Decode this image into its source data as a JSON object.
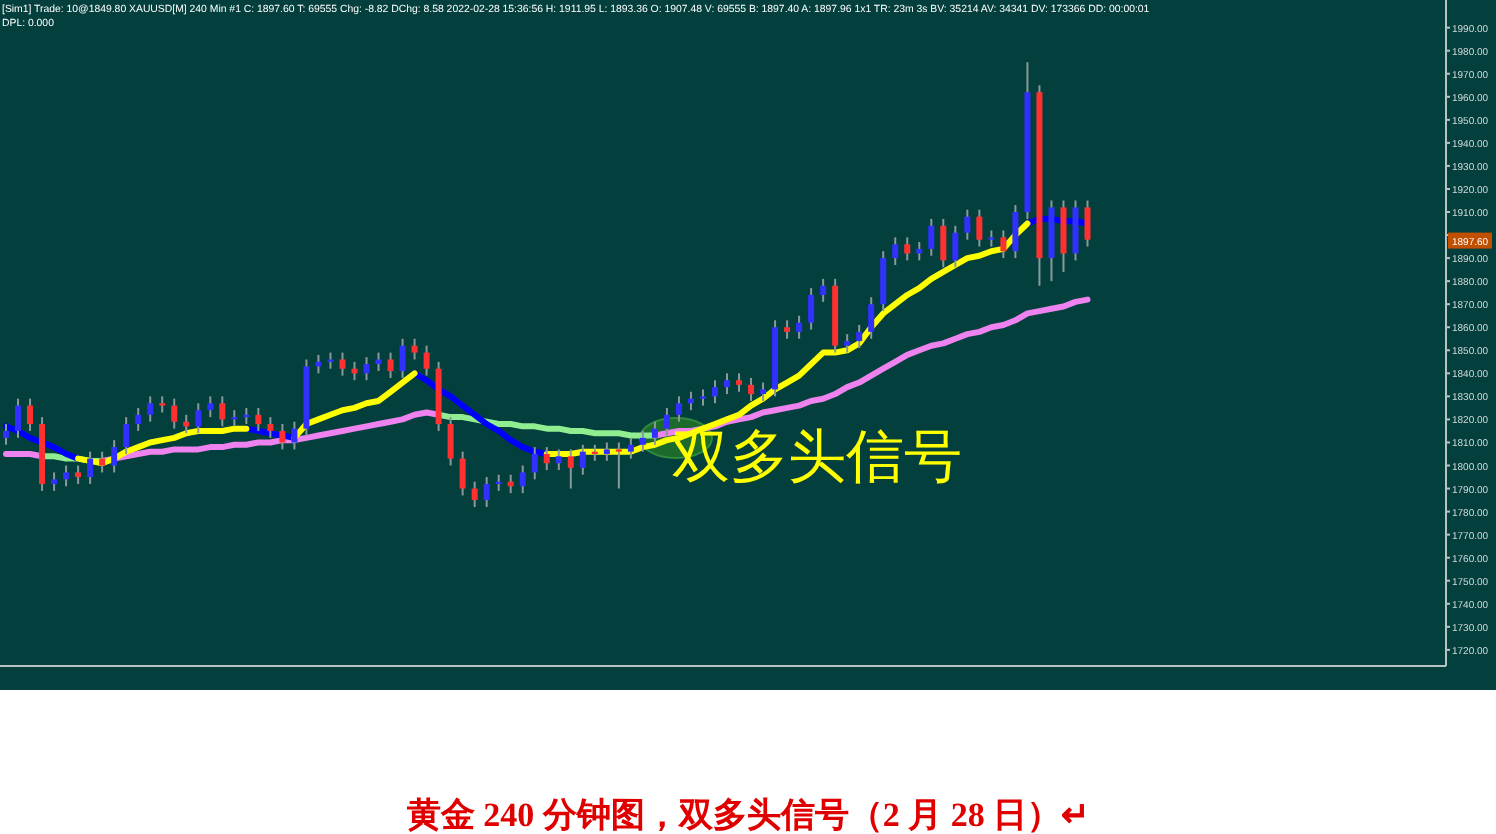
{
  "chart_data": {
    "type": "candlestick",
    "categories": [
      null,
      null,
      null,
      null,
      null,
      null,
      null,
      null,
      null,
      null,
      null,
      null,
      null,
      null,
      null,
      null,
      null,
      null,
      null,
      null,
      null,
      null,
      null,
      null,
      null,
      null,
      null,
      null,
      null,
      null,
      null,
      null,
      null,
      null,
      null,
      null,
      null,
      null,
      null,
      null,
      null,
      null,
      null,
      null,
      null,
      null,
      null,
      null,
      null,
      null,
      null,
      null,
      null,
      null,
      null,
      null,
      null,
      null,
      null,
      null,
      null,
      null,
      null,
      null,
      null,
      null,
      null,
      null,
      null,
      null,
      null,
      null,
      null,
      null,
      null,
      null,
      null,
      null,
      null,
      null,
      null,
      null,
      null,
      null,
      null,
      null,
      null,
      null,
      null,
      null,
      null,
      null,
      null,
      null,
      null,
      null,
      null,
      null,
      null,
      null,
      null,
      null,
      null,
      null,
      null,
      null,
      null,
      null,
      null,
      null,
      null,
      null,
      null,
      null,
      null,
      null,
      null,
      null,
      null,
      null
    ],
    "ohlc": [
      [
        1812,
        1818,
        1809,
        1815
      ],
      [
        1815,
        1829,
        1812,
        1826
      ],
      [
        1826,
        1829,
        1815,
        1818
      ],
      [
        1818,
        1821,
        1789,
        1792
      ],
      [
        1792,
        1797,
        1789,
        1794
      ],
      [
        1794,
        1800,
        1791,
        1797
      ],
      [
        1797,
        1800,
        1792,
        1795
      ],
      [
        1795,
        1806,
        1792,
        1803
      ],
      [
        1803,
        1806,
        1797,
        1800
      ],
      [
        1800,
        1811,
        1797,
        1808
      ],
      [
        1808,
        1821,
        1805,
        1818
      ],
      [
        1818,
        1825,
        1815,
        1822
      ],
      [
        1822,
        1830,
        1819,
        1827
      ],
      [
        1827,
        1830,
        1823,
        1826
      ],
      [
        1826,
        1829,
        1816,
        1819
      ],
      [
        1819,
        1822,
        1814,
        1817
      ],
      [
        1817,
        1827,
        1814,
        1824
      ],
      [
        1824,
        1830,
        1821,
        1827
      ],
      [
        1827,
        1830,
        1817,
        1820
      ],
      [
        1820,
        1824,
        1817,
        1821
      ],
      [
        1821,
        1825,
        1818,
        1822
      ],
      [
        1822,
        1825,
        1815,
        1818
      ],
      [
        1818,
        1821,
        1812,
        1815
      ],
      [
        1815,
        1818,
        1807,
        1810
      ],
      [
        1810,
        1819,
        1807,
        1816
      ],
      [
        1816,
        1846,
        1813,
        1843
      ],
      [
        1843,
        1848,
        1840,
        1845
      ],
      [
        1845,
        1849,
        1842,
        1846
      ],
      [
        1846,
        1849,
        1839,
        1842
      ],
      [
        1842,
        1845,
        1837,
        1840
      ],
      [
        1840,
        1847,
        1837,
        1844
      ],
      [
        1844,
        1849,
        1841,
        1846
      ],
      [
        1846,
        1849,
        1838,
        1841
      ],
      [
        1841,
        1855,
        1838,
        1852
      ],
      [
        1852,
        1855,
        1846,
        1849
      ],
      [
        1849,
        1852,
        1839,
        1842
      ],
      [
        1842,
        1845,
        1815,
        1818
      ],
      [
        1818,
        1821,
        1800,
        1803
      ],
      [
        1803,
        1806,
        1787,
        1790
      ],
      [
        1790,
        1793,
        1782,
        1785
      ],
      [
        1785,
        1795,
        1782,
        1792
      ],
      [
        1792,
        1796,
        1789,
        1793
      ],
      [
        1793,
        1796,
        1788,
        1791
      ],
      [
        1791,
        1800,
        1788,
        1797
      ],
      [
        1797,
        1808,
        1794,
        1805
      ],
      [
        1805,
        1808,
        1798,
        1801
      ],
      [
        1801,
        1807,
        1798,
        1804
      ],
      [
        1804,
        1807,
        1790,
        1799
      ],
      [
        1799,
        1809,
        1796,
        1806
      ],
      [
        1806,
        1809,
        1802,
        1805
      ],
      [
        1805,
        1810,
        1802,
        1807
      ],
      [
        1807,
        1810,
        1790,
        1806
      ],
      [
        1806,
        1812,
        1803,
        1809
      ],
      [
        1809,
        1815,
        1806,
        1812
      ],
      [
        1812,
        1819,
        1809,
        1816
      ],
      [
        1816,
        1825,
        1813,
        1822
      ],
      [
        1822,
        1830,
        1819,
        1827
      ],
      [
        1827,
        1832,
        1824,
        1829
      ],
      [
        1829,
        1833,
        1826,
        1830
      ],
      [
        1830,
        1837,
        1827,
        1834
      ],
      [
        1834,
        1840,
        1831,
        1837
      ],
      [
        1837,
        1840,
        1832,
        1835
      ],
      [
        1835,
        1838,
        1828,
        1831
      ],
      [
        1831,
        1836,
        1828,
        1833
      ],
      [
        1833,
        1863,
        1830,
        1860
      ],
      [
        1860,
        1863,
        1855,
        1858
      ],
      [
        1858,
        1865,
        1855,
        1862
      ],
      [
        1862,
        1877,
        1859,
        1874
      ],
      [
        1874,
        1881,
        1871,
        1878
      ],
      [
        1878,
        1881,
        1849,
        1852
      ],
      [
        1852,
        1857,
        1849,
        1854
      ],
      [
        1854,
        1861,
        1851,
        1858
      ],
      [
        1858,
        1873,
        1855,
        1870
      ],
      [
        1870,
        1893,
        1867,
        1890
      ],
      [
        1890,
        1899,
        1887,
        1896
      ],
      [
        1896,
        1899,
        1889,
        1892
      ],
      [
        1892,
        1897,
        1889,
        1894
      ],
      [
        1894,
        1907,
        1891,
        1904
      ],
      [
        1904,
        1907,
        1886,
        1889
      ],
      [
        1889,
        1904,
        1886,
        1901
      ],
      [
        1901,
        1911,
        1898,
        1908
      ],
      [
        1908,
        1911,
        1895,
        1898
      ],
      [
        1898,
        1902,
        1895,
        1899
      ],
      [
        1899,
        1902,
        1890,
        1893
      ],
      [
        1893,
        1913,
        1890,
        1910
      ],
      [
        1910,
        1975,
        1907,
        1962
      ],
      [
        1962,
        1965,
        1878,
        1890
      ],
      [
        1890,
        1915,
        1880,
        1912
      ],
      [
        1912,
        1915,
        1884,
        1892
      ],
      [
        1892,
        1915,
        1889,
        1912
      ],
      [
        1912,
        1915,
        1895,
        1898
      ],
      null,
      null,
      null,
      null,
      null,
      null,
      null,
      null,
      null,
      null,
      null,
      null,
      null,
      null,
      null,
      null,
      null,
      null,
      null,
      null,
      null,
      null,
      null,
      null,
      null,
      null,
      null,
      null,
      null
    ],
    "colors": [
      "#3030ff",
      "#3030ff",
      "#ff3030",
      "#ff3030",
      "#3030ff",
      "#3030ff",
      "#ff3030",
      "#3030ff",
      "#ff3030",
      "#3030ff",
      "#3030ff",
      "#3030ff",
      "#3030ff",
      "#ff3030",
      "#ff3030",
      "#ff3030",
      "#3030ff",
      "#3030ff",
      "#ff3030",
      "#3030ff",
      "#3030ff",
      "#ff3030",
      "#ff3030",
      "#ff3030",
      "#3030ff",
      "#3030ff",
      "#3030ff",
      "#3030ff",
      "#ff3030",
      "#ff3030",
      "#3030ff",
      "#3030ff",
      "#ff3030",
      "#3030ff",
      "#ff3030",
      "#ff3030",
      "#ff3030",
      "#ff3030",
      "#ff3030",
      "#ff3030",
      "#3030ff",
      "#3030ff",
      "#ff3030",
      "#3030ff",
      "#3030ff",
      "#ff3030",
      "#3030ff",
      "#ff3030",
      "#3030ff",
      "#ff3030",
      "#3030ff",
      "#ff3030",
      "#3030ff",
      "#3030ff",
      "#3030ff",
      "#3030ff",
      "#3030ff",
      "#3030ff",
      "#3030ff",
      "#3030ff",
      "#3030ff",
      "#ff3030",
      "#ff3030",
      "#3030ff",
      "#3030ff",
      "#ff3030",
      "#3030ff",
      "#3030ff",
      "#3030ff",
      "#ff3030",
      "#3030ff",
      "#3030ff",
      "#3030ff",
      "#3030ff",
      "#3030ff",
      "#ff3030",
      "#3030ff",
      "#3030ff",
      "#ff3030",
      "#3030ff",
      "#3030ff",
      "#ff3030",
      "#3030ff",
      "#ff3030",
      "#3030ff",
      "#3030ff",
      "#ff3030",
      "#3030ff",
      "#ff3030",
      "#3030ff",
      "#ff3030",
      null,
      null,
      null,
      null,
      null,
      null,
      null,
      null,
      null,
      null,
      null,
      null,
      null,
      null,
      null,
      null,
      null,
      null,
      null,
      null,
      null,
      null,
      null,
      null,
      null,
      null,
      null,
      null,
      null
    ],
    "series": [
      {
        "type": "line",
        "color": "#ee82ee",
        "values": [
          1805,
          1805,
          1805,
          1804,
          null,
          null,
          null,
          null,
          1802,
          1803,
          1804,
          1805,
          1806,
          1806,
          1807,
          1807,
          1807,
          1808,
          1808,
          1809,
          1809,
          1810,
          1810,
          1811,
          1811,
          1812,
          1813,
          1814,
          1815,
          1816,
          1817,
          1818,
          1819,
          1820,
          1822,
          1823,
          1822,
          null,
          null,
          null,
          null,
          null,
          null,
          null,
          null,
          null,
          null,
          null,
          null,
          null,
          null,
          null,
          null,
          null,
          1813,
          1814,
          1815,
          1815,
          1816,
          1817,
          1819,
          1820,
          1821,
          1823,
          1824,
          1825,
          1826,
          1828,
          1829,
          1831,
          1834,
          1836,
          1839,
          1842,
          1845,
          1848,
          1850,
          1852,
          1853,
          1855,
          1857,
          1858,
          1860,
          1861,
          1863,
          1866,
          1867,
          1868,
          1869,
          1871,
          1872,
          null,
          null,
          null,
          null,
          null,
          null,
          null,
          null,
          null,
          null,
          null,
          null,
          null,
          null,
          null,
          null,
          null,
          null,
          null,
          null,
          null,
          null,
          null,
          null,
          null,
          null,
          null,
          null,
          null
        ]
      },
      {
        "type": "line",
        "color": "#90ee90",
        "values": [
          null,
          null,
          null,
          1804,
          1804,
          1803,
          1803,
          1802,
          1802,
          null,
          null,
          null,
          null,
          null,
          null,
          null,
          null,
          null,
          null,
          null,
          null,
          null,
          null,
          null,
          null,
          null,
          null,
          null,
          null,
          null,
          null,
          null,
          null,
          null,
          null,
          null,
          1822,
          1821,
          1821,
          1820,
          1819,
          1818,
          1818,
          1817,
          1817,
          1816,
          1816,
          1815,
          1815,
          1814,
          1814,
          1814,
          1813,
          1813,
          1813,
          null,
          null,
          null,
          null,
          null,
          null,
          null,
          null,
          null,
          null,
          null,
          null,
          null,
          null,
          null,
          null,
          null,
          null,
          null,
          null,
          null,
          null,
          null,
          null,
          null,
          null,
          null,
          null,
          null,
          null,
          null,
          null,
          null,
          null,
          null,
          null,
          null,
          null,
          null,
          null,
          null,
          null,
          null,
          null,
          null,
          null,
          null,
          null,
          null,
          null,
          null,
          null,
          null,
          null,
          null,
          null,
          null,
          null,
          null,
          null,
          null,
          null,
          null,
          null,
          null
        ]
      },
      {
        "type": "line",
        "color": "#0000ff",
        "values": [
          1817,
          1815,
          1812,
          1810,
          1808,
          1805,
          1803,
          null,
          null,
          null,
          null,
          null,
          null,
          null,
          null,
          null,
          null,
          null,
          null,
          null,
          1816,
          1815,
          1814,
          1813,
          1812,
          null,
          null,
          null,
          null,
          null,
          null,
          null,
          null,
          null,
          1840,
          1837,
          1833,
          1830,
          1826,
          1822,
          1818,
          1815,
          1811,
          1808,
          1806,
          1805,
          null,
          null,
          null,
          null,
          null,
          null,
          null,
          null,
          null,
          null,
          null,
          null,
          null,
          null,
          null,
          null,
          null,
          null,
          null,
          null,
          null,
          null,
          null,
          null,
          null,
          null,
          null,
          null,
          null,
          null,
          null,
          null,
          null,
          null,
          null,
          null,
          null,
          null,
          null,
          1905,
          1907,
          1907,
          1906,
          1906,
          1905,
          null,
          null,
          null,
          null,
          null,
          null,
          null,
          null,
          null,
          null,
          null,
          null,
          null,
          null,
          null,
          null,
          null,
          null,
          null,
          null,
          null,
          null,
          null,
          null,
          null,
          null,
          null,
          null,
          null
        ]
      },
      {
        "type": "line",
        "color": "#ffff00",
        "values": [
          null,
          null,
          null,
          null,
          null,
          null,
          1803,
          1802,
          1801,
          1803,
          1806,
          1808,
          1810,
          1811,
          1812,
          1814,
          1815,
          1815,
          1815,
          1816,
          1816,
          null,
          null,
          null,
          1812,
          1818,
          1820,
          1822,
          1824,
          1825,
          1827,
          1828,
          1832,
          1836,
          1840,
          null,
          null,
          null,
          null,
          null,
          null,
          null,
          null,
          null,
          null,
          1805,
          1805,
          1805,
          1806,
          1806,
          1806,
          1806,
          1806,
          1808,
          1809,
          1811,
          1812,
          1814,
          1816,
          1818,
          1820,
          1822,
          1826,
          1829,
          1833,
          1836,
          1839,
          1844,
          1849,
          1849,
          1850,
          1853,
          1860,
          1866,
          1870,
          1874,
          1877,
          1881,
          1884,
          1887,
          1890,
          1891,
          1893,
          1894,
          1900,
          1905,
          null,
          null,
          null,
          null,
          null,
          null,
          null,
          null,
          null,
          null,
          null,
          null,
          null,
          null,
          null,
          null,
          null,
          null,
          null,
          null,
          null,
          null,
          null,
          null,
          null,
          null,
          null,
          null,
          null,
          null,
          null,
          null,
          null,
          null
        ]
      }
    ],
    "ylim": [
      1713,
      2002
    ],
    "yticks": [
      {
        "value": 1720,
        "label": "1720.00"
      },
      {
        "value": 1730,
        "label": "1730.00"
      },
      {
        "value": 1740,
        "label": "1740.00"
      },
      {
        "value": 1750,
        "label": "1750.00"
      },
      {
        "value": 1760,
        "label": "1760.00"
      },
      {
        "value": 1770,
        "label": "1770.00"
      },
      {
        "value": 1780,
        "label": "1780.00"
      },
      {
        "value": 1790,
        "label": "1790.00"
      },
      {
        "value": 1800,
        "label": "1800.00"
      },
      {
        "value": 1810,
        "label": "1810.00"
      },
      {
        "value": 1820,
        "label": "1820.00"
      },
      {
        "value": 1830,
        "label": "1830.00"
      },
      {
        "value": 1840,
        "label": "1840.00"
      },
      {
        "value": 1850,
        "label": "1850.00"
      },
      {
        "value": 1860,
        "label": "1860.00"
      },
      {
        "value": 1870,
        "label": "1870.00"
      },
      {
        "value": 1880,
        "label": "1880.00"
      },
      {
        "value": 1890,
        "label": "1890.00"
      },
      {
        "value": 1900,
        "label": null
      },
      {
        "value": 1910,
        "label": "1910.00"
      },
      {
        "value": 1920,
        "label": "1920.00"
      },
      {
        "value": 1930,
        "label": "1930.00"
      },
      {
        "value": 1940,
        "label": "1940.00"
      },
      {
        "value": 1950,
        "label": "1950.00"
      },
      {
        "value": 1960,
        "label": "1960.00"
      },
      {
        "value": 1970,
        "label": "1970.00"
      },
      {
        "value": 1980,
        "label": "1980.00"
      },
      {
        "value": 1990,
        "label": "1990.00"
      }
    ],
    "tick_labels": "y",
    "annotations": [
      "[Sim1]  Trade: 10@1849.80  XAUUSD[M]  240 Min  #1  C: 1897.60  T: 69555  Chg: -8.82  DChg: 8.58  2022-02-28 15:36:56  H: 1911.95  L: 1893.36  O: 1907.48  V: 69555  B: 1897.40  A: 1897.96  1x1  TR: 23m 3s  BV: 35214  AV: 34341  DV: 173366  DD: 00:00:01",
      "DPL: 0.000",
      {
        "text": "1897.60",
        "y": 1897.6
      },
      "双多头信号",
      "黄金 240 分钟图，双多头信号（2 月 28 日）↵"
    ]
  }
}
